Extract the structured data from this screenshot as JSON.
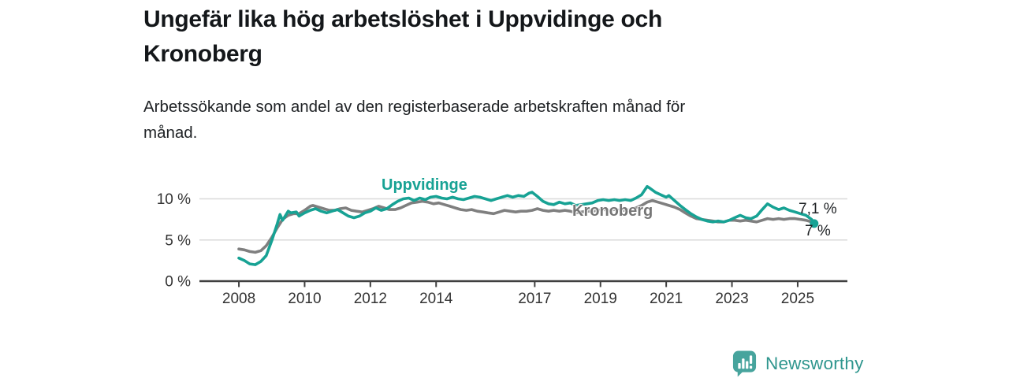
{
  "header": {
    "title_lines": [
      "Ungefär lika hög arbetslöshet i Uppvidinge och",
      "Kronoberg"
    ],
    "subtitle_lines": [
      "Arbetssökande som andel av den registerbaserade arbetskraften månad för",
      "månad."
    ]
  },
  "footer": {
    "brand_name": "Newsworthy",
    "logo_icon": "bar-chart-speech-bubble-icon"
  },
  "colors": {
    "accent_teal": "#17a294",
    "line_gray": "#7f7f7f",
    "kronoberg_label_gray": "#767676",
    "axis_text": "#333333",
    "axis_line": "#404040",
    "gridline": "#d9d9d9",
    "annotation_text": "#1e2124",
    "logo_teal": "#47a49d",
    "logo_text_teal": "#2f968e"
  },
  "chart_data": {
    "type": "line",
    "title": "Ungefär lika hög arbetslöshet i Uppvidinge och Kronoberg",
    "subtitle": "Arbetssökande som andel av den registerbaserade arbetskraften månad för månad.",
    "unit": "%",
    "grid": "horizontal",
    "legend": "inline-labels",
    "x_axis": {
      "range": [
        2006.8,
        2026.5
      ],
      "ticks": [
        2008,
        2010,
        2012,
        2014,
        2017,
        2019,
        2021,
        2023,
        2025
      ]
    },
    "y_axis": {
      "range": [
        0,
        12.3
      ],
      "ticks": [
        {
          "value": 0,
          "label": "0 %"
        },
        {
          "value": 5,
          "label": "5 %"
        },
        {
          "value": 10,
          "label": "10 %"
        }
      ]
    },
    "series": [
      {
        "name": "Uppvidinge",
        "color": "#17a294",
        "end_value": 7.0,
        "end_label": "7 %",
        "end_dot": true,
        "points": [
          [
            2008.0,
            2.8
          ],
          [
            2008.17,
            2.5
          ],
          [
            2008.33,
            2.1
          ],
          [
            2008.5,
            2.0
          ],
          [
            2008.67,
            2.4
          ],
          [
            2008.83,
            3.1
          ],
          [
            2009.0,
            4.9
          ],
          [
            2009.17,
            7.0
          ],
          [
            2009.25,
            8.1
          ],
          [
            2009.33,
            7.4
          ],
          [
            2009.5,
            8.5
          ],
          [
            2009.58,
            8.3
          ],
          [
            2009.75,
            8.4
          ],
          [
            2009.83,
            7.9
          ],
          [
            2010.0,
            8.3
          ],
          [
            2010.17,
            8.6
          ],
          [
            2010.33,
            8.8
          ],
          [
            2010.5,
            8.5
          ],
          [
            2010.67,
            8.3
          ],
          [
            2010.83,
            8.5
          ],
          [
            2011.0,
            8.7
          ],
          [
            2011.17,
            8.3
          ],
          [
            2011.33,
            7.9
          ],
          [
            2011.5,
            7.7
          ],
          [
            2011.67,
            7.9
          ],
          [
            2011.83,
            8.3
          ],
          [
            2012.0,
            8.5
          ],
          [
            2012.17,
            8.9
          ],
          [
            2012.33,
            8.6
          ],
          [
            2012.5,
            8.8
          ],
          [
            2012.67,
            9.3
          ],
          [
            2012.83,
            9.7
          ],
          [
            2013.0,
            10.0
          ],
          [
            2013.17,
            10.1
          ],
          [
            2013.33,
            9.8
          ],
          [
            2013.5,
            10.1
          ],
          [
            2013.67,
            9.9
          ],
          [
            2013.83,
            10.2
          ],
          [
            2014.0,
            10.3
          ],
          [
            2014.17,
            10.1
          ],
          [
            2014.33,
            10.0
          ],
          [
            2014.5,
            10.2
          ],
          [
            2014.67,
            10.0
          ],
          [
            2014.83,
            9.9
          ],
          [
            2015.0,
            10.1
          ],
          [
            2015.17,
            10.3
          ],
          [
            2015.33,
            10.2
          ],
          [
            2015.5,
            10.0
          ],
          [
            2015.67,
            9.8
          ],
          [
            2015.83,
            10.0
          ],
          [
            2016.0,
            10.2
          ],
          [
            2016.17,
            10.4
          ],
          [
            2016.33,
            10.2
          ],
          [
            2016.5,
            10.4
          ],
          [
            2016.67,
            10.3
          ],
          [
            2016.83,
            10.7
          ],
          [
            2016.92,
            10.8
          ],
          [
            2017.08,
            10.3
          ],
          [
            2017.25,
            9.7
          ],
          [
            2017.42,
            9.4
          ],
          [
            2017.58,
            9.3
          ],
          [
            2017.75,
            9.6
          ],
          [
            2017.92,
            9.4
          ],
          [
            2018.08,
            9.5
          ],
          [
            2018.25,
            9.2
          ],
          [
            2018.42,
            9.3
          ],
          [
            2018.58,
            9.4
          ],
          [
            2018.75,
            9.5
          ],
          [
            2018.92,
            9.8
          ],
          [
            2019.08,
            9.9
          ],
          [
            2019.25,
            9.8
          ],
          [
            2019.42,
            9.9
          ],
          [
            2019.58,
            9.8
          ],
          [
            2019.75,
            9.9
          ],
          [
            2019.92,
            9.8
          ],
          [
            2020.08,
            10.1
          ],
          [
            2020.25,
            10.5
          ],
          [
            2020.42,
            11.5
          ],
          [
            2020.5,
            11.3
          ],
          [
            2020.67,
            10.8
          ],
          [
            2020.83,
            10.5
          ],
          [
            2021.0,
            10.2
          ],
          [
            2021.08,
            10.4
          ],
          [
            2021.25,
            9.8
          ],
          [
            2021.42,
            9.2
          ],
          [
            2021.58,
            8.7
          ],
          [
            2021.75,
            8.2
          ],
          [
            2021.92,
            7.8
          ],
          [
            2022.08,
            7.5
          ],
          [
            2022.25,
            7.3
          ],
          [
            2022.42,
            7.2
          ],
          [
            2022.58,
            7.3
          ],
          [
            2022.75,
            7.2
          ],
          [
            2022.92,
            7.4
          ],
          [
            2023.08,
            7.7
          ],
          [
            2023.25,
            8.0
          ],
          [
            2023.42,
            7.7
          ],
          [
            2023.58,
            7.6
          ],
          [
            2023.75,
            7.9
          ],
          [
            2023.92,
            8.7
          ],
          [
            2024.08,
            9.4
          ],
          [
            2024.25,
            9.0
          ],
          [
            2024.42,
            8.7
          ],
          [
            2024.58,
            8.9
          ],
          [
            2024.75,
            8.6
          ],
          [
            2024.92,
            8.4
          ],
          [
            2025.08,
            8.2
          ],
          [
            2025.25,
            8.0
          ],
          [
            2025.42,
            7.5
          ],
          [
            2025.5,
            7.0
          ]
        ]
      },
      {
        "name": "Kronoberg",
        "color": "#7f7f7f",
        "end_value": 7.1,
        "end_label": "7,1 %",
        "end_dot": false,
        "points": [
          [
            2008.0,
            3.9
          ],
          [
            2008.17,
            3.8
          ],
          [
            2008.33,
            3.6
          ],
          [
            2008.5,
            3.5
          ],
          [
            2008.67,
            3.7
          ],
          [
            2008.83,
            4.3
          ],
          [
            2009.0,
            5.3
          ],
          [
            2009.17,
            6.5
          ],
          [
            2009.33,
            7.5
          ],
          [
            2009.5,
            8.0
          ],
          [
            2009.67,
            8.2
          ],
          [
            2009.83,
            8.2
          ],
          [
            2010.0,
            8.6
          ],
          [
            2010.17,
            9.1
          ],
          [
            2010.25,
            9.2
          ],
          [
            2010.42,
            9.0
          ],
          [
            2010.58,
            8.8
          ],
          [
            2010.75,
            8.6
          ],
          [
            2010.92,
            8.6
          ],
          [
            2011.08,
            8.8
          ],
          [
            2011.25,
            8.9
          ],
          [
            2011.42,
            8.6
          ],
          [
            2011.58,
            8.5
          ],
          [
            2011.75,
            8.4
          ],
          [
            2011.92,
            8.6
          ],
          [
            2012.08,
            8.8
          ],
          [
            2012.25,
            9.1
          ],
          [
            2012.42,
            8.9
          ],
          [
            2012.58,
            8.7
          ],
          [
            2012.75,
            8.7
          ],
          [
            2012.92,
            8.9
          ],
          [
            2013.08,
            9.2
          ],
          [
            2013.25,
            9.5
          ],
          [
            2013.42,
            9.6
          ],
          [
            2013.58,
            9.7
          ],
          [
            2013.75,
            9.6
          ],
          [
            2013.92,
            9.4
          ],
          [
            2014.08,
            9.5
          ],
          [
            2014.25,
            9.3
          ],
          [
            2014.42,
            9.1
          ],
          [
            2014.58,
            8.9
          ],
          [
            2014.75,
            8.7
          ],
          [
            2014.92,
            8.6
          ],
          [
            2015.08,
            8.7
          ],
          [
            2015.25,
            8.5
          ],
          [
            2015.42,
            8.4
          ],
          [
            2015.58,
            8.3
          ],
          [
            2015.75,
            8.2
          ],
          [
            2015.92,
            8.4
          ],
          [
            2016.08,
            8.6
          ],
          [
            2016.25,
            8.5
          ],
          [
            2016.42,
            8.4
          ],
          [
            2016.58,
            8.5
          ],
          [
            2016.75,
            8.5
          ],
          [
            2016.92,
            8.6
          ],
          [
            2017.08,
            8.8
          ],
          [
            2017.25,
            8.6
          ],
          [
            2017.42,
            8.5
          ],
          [
            2017.58,
            8.6
          ],
          [
            2017.75,
            8.5
          ],
          [
            2017.92,
            8.6
          ],
          [
            2018.08,
            8.5
          ],
          [
            2018.25,
            8.3
          ],
          [
            2018.42,
            8.4
          ],
          [
            2018.58,
            8.5
          ],
          [
            2018.75,
            8.5
          ],
          [
            2018.92,
            8.6
          ],
          [
            2019.08,
            8.7
          ],
          [
            2019.25,
            8.6
          ],
          [
            2019.42,
            8.7
          ],
          [
            2019.58,
            8.6
          ],
          [
            2019.75,
            8.6
          ],
          [
            2019.92,
            8.7
          ],
          [
            2020.08,
            8.9
          ],
          [
            2020.25,
            9.2
          ],
          [
            2020.42,
            9.6
          ],
          [
            2020.58,
            9.8
          ],
          [
            2020.75,
            9.6
          ],
          [
            2020.92,
            9.4
          ],
          [
            2021.08,
            9.2
          ],
          [
            2021.25,
            9.0
          ],
          [
            2021.42,
            8.7
          ],
          [
            2021.58,
            8.3
          ],
          [
            2021.75,
            7.9
          ],
          [
            2021.92,
            7.6
          ],
          [
            2022.08,
            7.5
          ],
          [
            2022.25,
            7.4
          ],
          [
            2022.42,
            7.3
          ],
          [
            2022.58,
            7.2
          ],
          [
            2022.75,
            7.2
          ],
          [
            2022.92,
            7.4
          ],
          [
            2023.08,
            7.4
          ],
          [
            2023.25,
            7.3
          ],
          [
            2023.42,
            7.4
          ],
          [
            2023.58,
            7.3
          ],
          [
            2023.75,
            7.2
          ],
          [
            2023.92,
            7.4
          ],
          [
            2024.08,
            7.6
          ],
          [
            2024.25,
            7.5
          ],
          [
            2024.42,
            7.6
          ],
          [
            2024.58,
            7.5
          ],
          [
            2024.75,
            7.6
          ],
          [
            2024.92,
            7.6
          ],
          [
            2025.08,
            7.5
          ],
          [
            2025.25,
            7.4
          ],
          [
            2025.42,
            7.2
          ],
          [
            2025.5,
            7.1
          ]
        ]
      }
    ]
  }
}
